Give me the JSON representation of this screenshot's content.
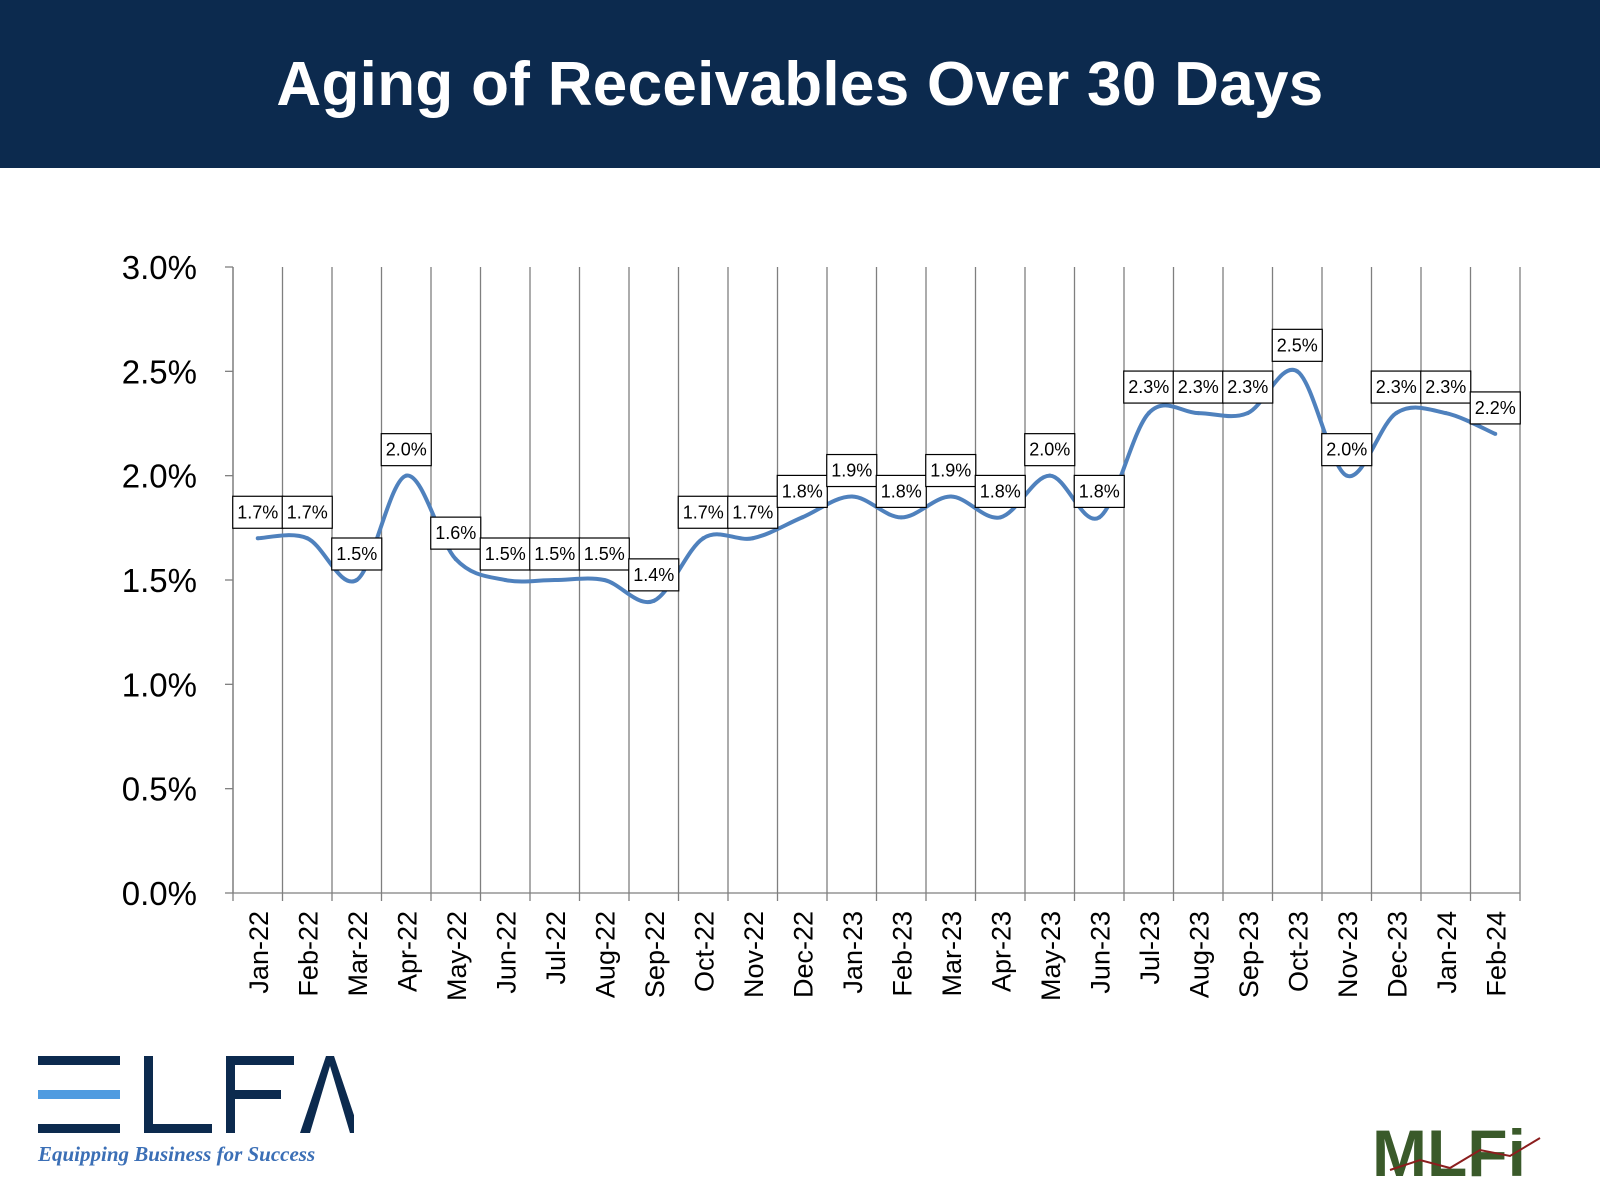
{
  "header": {
    "title": "Aging of Receivables Over 30 Days"
  },
  "colors": {
    "header_bg": "#0c2a4e",
    "line": "#4f81bd",
    "grid": "#7f7f7f",
    "elfa_dark": "#0c2a4e",
    "elfa_light": "#4f9be0",
    "mlfi_green": "#3a5a2a"
  },
  "chart_data": {
    "type": "line",
    "title": "",
    "xlabel": "",
    "ylabel": "",
    "categories": [
      "Jan-22",
      "Feb-22",
      "Mar-22",
      "Apr-22",
      "May-22",
      "Jun-22",
      "Jul-22",
      "Aug-22",
      "Sep-22",
      "Oct-22",
      "Nov-22",
      "Dec-22",
      "Jan-23",
      "Feb-23",
      "Mar-23",
      "Apr-23",
      "May-23",
      "Jun-23",
      "Jul-23",
      "Aug-23",
      "Sep-23",
      "Oct-23",
      "Nov-23",
      "Dec-23",
      "Jan-24",
      "Feb-24"
    ],
    "values": [
      1.7,
      1.7,
      1.5,
      2.0,
      1.6,
      1.5,
      1.5,
      1.5,
      1.4,
      1.7,
      1.7,
      1.8,
      1.9,
      1.8,
      1.9,
      1.8,
      2.0,
      1.8,
      2.3,
      2.3,
      2.3,
      2.5,
      2.0,
      2.3,
      2.3,
      2.2
    ],
    "value_labels": [
      "1.7%",
      "1.7%",
      "1.5%",
      "2.0%",
      "1.6%",
      "1.5%",
      "1.5%",
      "1.5%",
      "1.4%",
      "1.7%",
      "1.7%",
      "1.8%",
      "1.9%",
      "1.8%",
      "1.9%",
      "1.8%",
      "2.0%",
      "1.8%",
      "2.3%",
      "2.3%",
      "2.3%",
      "2.5%",
      "2.0%",
      "2.3%",
      "2.3%",
      "2.2%"
    ],
    "yticks": [
      "0.0%",
      "0.5%",
      "1.0%",
      "1.5%",
      "2.0%",
      "2.5%",
      "3.0%"
    ],
    "ylim": [
      0,
      3.0
    ],
    "grid": "vertical",
    "smooth": true
  },
  "logos": {
    "elfa_text": "ELFA",
    "elfa_tagline": "Equipping Business for Success",
    "mlfi_text": "MLFi"
  }
}
